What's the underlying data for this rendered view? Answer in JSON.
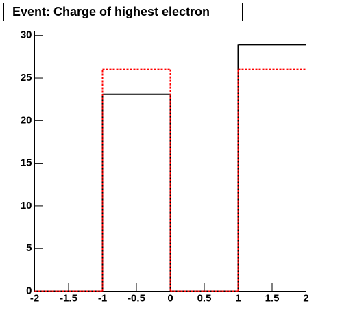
{
  "chart_data": {
    "type": "histogram",
    "title": "Event: Charge of highest electron",
    "bins": [
      -2,
      -1,
      0,
      1,
      2
    ],
    "series": [
      {
        "color": "#000000",
        "values": [
          0,
          23.1,
          0,
          28.9
        ]
      },
      {
        "color": "#ff0000",
        "values": [
          0,
          26,
          0,
          26
        ]
      }
    ],
    "xlim": [
      -2,
      2
    ],
    "xticks": [
      -2,
      -1.5,
      -1,
      -0.5,
      0,
      0.5,
      1,
      1.5,
      2
    ],
    "ylim": [
      0,
      30.5
    ],
    "yticks": [
      0,
      5,
      10,
      15,
      20,
      25,
      30
    ]
  }
}
